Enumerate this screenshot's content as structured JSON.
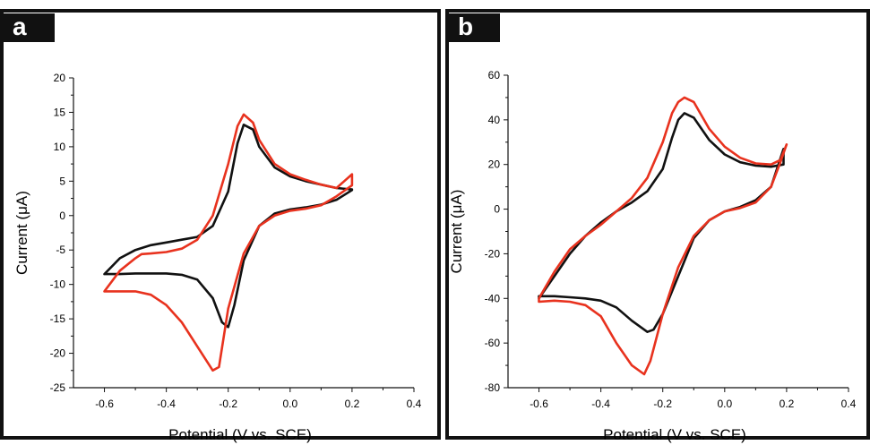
{
  "panels": [
    {
      "letter": "a",
      "chart_data": {
        "type": "line",
        "xlabel": "Potential (V vs. SCE)",
        "ylabel": "Current (μA)",
        "xlim": [
          -0.7,
          0.4
        ],
        "ylim": [
          -25,
          20
        ],
        "xticks": [
          "-0.6",
          "-0.4",
          "-0.2",
          "0.0",
          "0.2",
          "0.4"
        ],
        "yticks": [
          "20",
          "15",
          "10",
          "5",
          "0",
          "-5",
          "-10",
          "-15",
          "-20",
          "-25"
        ],
        "series": [
          {
            "color": "#111111",
            "x": [
              -0.6,
              -0.55,
              -0.5,
              -0.45,
              -0.4,
              -0.35,
              -0.3,
              -0.25,
              -0.2,
              -0.17,
              -0.15,
              -0.12,
              -0.1,
              -0.05,
              0.0,
              0.05,
              0.1,
              0.15,
              0.2,
              0.2,
              0.15,
              0.1,
              0.05,
              0.0,
              -0.05,
              -0.1,
              -0.15,
              -0.18,
              -0.2,
              -0.22,
              -0.25,
              -0.3,
              -0.35,
              -0.4,
              -0.45,
              -0.5,
              -0.55,
              -0.6
            ],
            "y": [
              -8.5,
              -6.2,
              -5.0,
              -4.3,
              -3.9,
              -3.5,
              -3.1,
              -1.5,
              3.5,
              10.5,
              13.2,
              12.5,
              10.0,
              7.0,
              5.7,
              5.0,
              4.5,
              4.0,
              3.8,
              3.7,
              2.3,
              1.6,
              1.2,
              0.9,
              0.3,
              -1.5,
              -6.5,
              -13.0,
              -16.2,
              -15.5,
              -12.0,
              -9.3,
              -8.6,
              -8.4,
              -8.4,
              -8.4,
              -8.5,
              -8.5
            ]
          },
          {
            "color": "#e8321e",
            "x": [
              -0.6,
              -0.55,
              -0.5,
              -0.48,
              -0.45,
              -0.4,
              -0.35,
              -0.3,
              -0.25,
              -0.2,
              -0.17,
              -0.15,
              -0.12,
              -0.1,
              -0.05,
              0.0,
              0.05,
              0.1,
              0.15,
              0.2,
              0.2,
              0.15,
              0.1,
              0.05,
              0.0,
              -0.05,
              -0.1,
              -0.15,
              -0.2,
              -0.23,
              -0.25,
              -0.3,
              -0.35,
              -0.4,
              -0.45,
              -0.5,
              -0.55,
              -0.6
            ],
            "y": [
              -11.0,
              -8.0,
              -6.2,
              -5.6,
              -5.5,
              -5.3,
              -4.8,
              -3.5,
              0.0,
              7.5,
              13.0,
              14.7,
              13.5,
              11.0,
              7.5,
              6.0,
              5.2,
              4.5,
              4.0,
              6.0,
              4.4,
              2.8,
              1.5,
              1.0,
              0.7,
              0.0,
              -1.5,
              -5.5,
              -13.5,
              -22.0,
              -22.5,
              -19.0,
              -15.5,
              -13.0,
              -11.5,
              -11.0,
              -11.0,
              -11.0
            ]
          }
        ]
      }
    },
    {
      "letter": "b",
      "chart_data": {
        "type": "line",
        "xlabel": "Potential (V vs. SCE)",
        "ylabel": "Current (μA)",
        "xlim": [
          -0.7,
          0.4
        ],
        "ylim": [
          -80,
          60
        ],
        "xticks": [
          "-0.6",
          "-0.4",
          "-0.2",
          "0.0",
          "0.2",
          "0.4"
        ],
        "yticks": [
          "60",
          "40",
          "20",
          "0",
          "-20",
          "-40",
          "-60",
          "-80"
        ],
        "series": [
          {
            "color": "#111111",
            "x": [
              -0.6,
              -0.55,
              -0.5,
              -0.45,
              -0.4,
              -0.35,
              -0.3,
              -0.25,
              -0.2,
              -0.17,
              -0.15,
              -0.13,
              -0.1,
              -0.05,
              0.0,
              0.05,
              0.1,
              0.15,
              0.19,
              0.19,
              0.15,
              0.1,
              0.05,
              0.0,
              -0.05,
              -0.1,
              -0.15,
              -0.2,
              -0.23,
              -0.25,
              -0.3,
              -0.35,
              -0.4,
              -0.45,
              -0.5,
              -0.55,
              -0.6
            ],
            "y": [
              -40.0,
              -30.0,
              -20.0,
              -12.0,
              -6.0,
              -1.0,
              3.0,
              8.0,
              18.0,
              32.0,
              40.0,
              43.0,
              41.0,
              31.0,
              24.5,
              21.0,
              19.5,
              19.0,
              20.0,
              27.0,
              10.0,
              4.0,
              1.0,
              -1.0,
              -5.0,
              -13.0,
              -30.0,
              -47.0,
              -54.0,
              -55.0,
              -50.0,
              -44.0,
              -41.0,
              -40.0,
              -39.5,
              -39.0,
              -39.0
            ]
          },
          {
            "color": "#e8321e",
            "x": [
              -0.6,
              -0.55,
              -0.5,
              -0.45,
              -0.4,
              -0.35,
              -0.3,
              -0.25,
              -0.2,
              -0.17,
              -0.15,
              -0.13,
              -0.1,
              -0.05,
              0.0,
              0.05,
              0.1,
              0.15,
              0.18,
              0.2,
              0.18,
              0.15,
              0.1,
              0.05,
              0.0,
              -0.05,
              -0.1,
              -0.15,
              -0.2,
              -0.24,
              -0.26,
              -0.3,
              -0.35,
              -0.4,
              -0.45,
              -0.5,
              -0.55,
              -0.6
            ],
            "y": [
              -40.0,
              -28.0,
              -18.0,
              -12.0,
              -7.0,
              -1.0,
              5.0,
              14.0,
              30.0,
              43.0,
              48.0,
              50.0,
              48.0,
              36.0,
              28.0,
              23.0,
              20.5,
              20.0,
              22.0,
              29.0,
              21.0,
              10.0,
              3.0,
              0.5,
              -1.0,
              -5.0,
              -12.0,
              -26.0,
              -47.0,
              -68.0,
              -74.0,
              -70.0,
              -60.0,
              -48.0,
              -43.0,
              -41.5,
              -41.0,
              -41.5
            ]
          }
        ]
      }
    }
  ]
}
